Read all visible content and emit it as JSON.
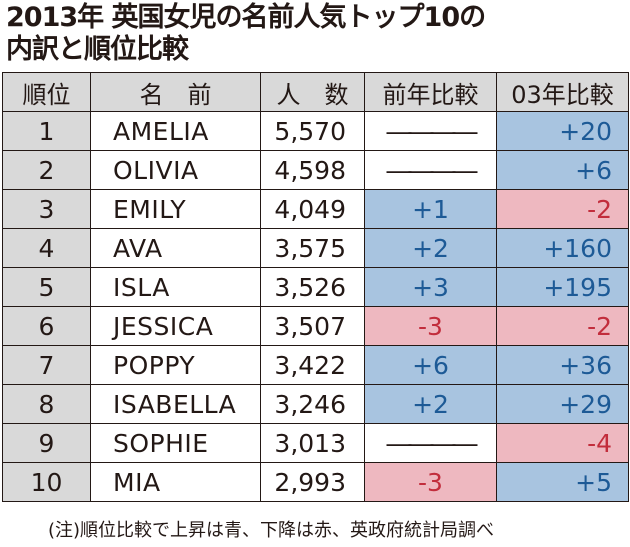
{
  "title": {
    "line1": "2013年 英国女児の名前人気トップ10の",
    "line2": "内訳と順位比較"
  },
  "columns": [
    "順位",
    "名　前",
    "人　数",
    "前年比較",
    "03年比較"
  ],
  "rows": [
    {
      "rank": "1",
      "name": "AMELIA",
      "count": "5,570",
      "prev": "――――",
      "prev_dir": "flat",
      "y03": "+20",
      "y03_dir": "up"
    },
    {
      "rank": "2",
      "name": "OLIVIA",
      "count": "4,598",
      "prev": "――――",
      "prev_dir": "flat",
      "y03": "+6",
      "y03_dir": "up"
    },
    {
      "rank": "3",
      "name": "EMILY",
      "count": "4,049",
      "prev": "+1",
      "prev_dir": "up",
      "y03": "-2",
      "y03_dir": "down"
    },
    {
      "rank": "4",
      "name": "AVA",
      "count": "3,575",
      "prev": "+2",
      "prev_dir": "up",
      "y03": "+160",
      "y03_dir": "up"
    },
    {
      "rank": "5",
      "name": "ISLA",
      "count": "3,526",
      "prev": "+3",
      "prev_dir": "up",
      "y03": "+195",
      "y03_dir": "up"
    },
    {
      "rank": "6",
      "name": "JESSICA",
      "count": "3,507",
      "prev": "-3",
      "prev_dir": "down",
      "y03": "-2",
      "y03_dir": "down"
    },
    {
      "rank": "7",
      "name": "POPPY",
      "count": "3,422",
      "prev": "+6",
      "prev_dir": "up",
      "y03": "+36",
      "y03_dir": "up"
    },
    {
      "rank": "8",
      "name": "ISABELLA",
      "count": "3,246",
      "prev": "+2",
      "prev_dir": "up",
      "y03": "+29",
      "y03_dir": "up"
    },
    {
      "rank": "9",
      "name": "SOPHIE",
      "count": "3,013",
      "prev": "――――",
      "prev_dir": "flat",
      "y03": "-4",
      "y03_dir": "down"
    },
    {
      "rank": "10",
      "name": "MIA",
      "count": "2,993",
      "prev": "-3",
      "prev_dir": "down",
      "y03": "+5",
      "y03_dir": "up"
    }
  ],
  "colors": {
    "up_bg": "#a8c4e0",
    "up_text": "#1d5a96",
    "down_bg": "#eeb8c0",
    "down_text": "#c22d3c",
    "header_bg": "#d9d9d9"
  },
  "note": "(注)順位比較で上昇は青、下降は赤、英政府統計局調べ"
}
